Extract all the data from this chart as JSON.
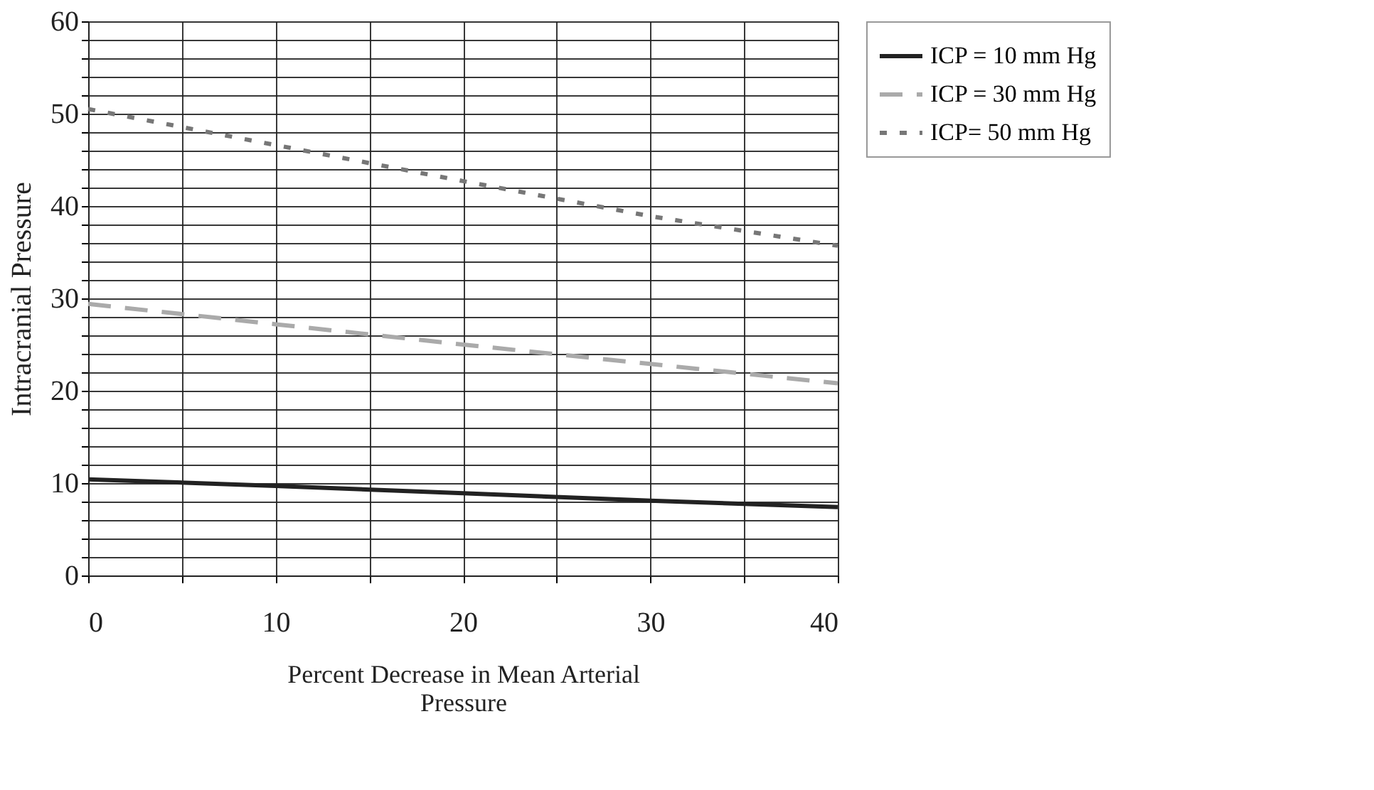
{
  "chart_data": {
    "type": "line",
    "xlabel": "Percent Decrease in Mean Arterial Pressure",
    "ylabel": "Intracranial Pressure",
    "x": [
      0,
      10,
      20,
      30,
      40
    ],
    "series": [
      {
        "name": "ICP = 10 mm Hg",
        "color": "#222222",
        "line_style": "solid",
        "values": [
          10.4,
          9.7,
          8.9,
          8.1,
          7.4
        ]
      },
      {
        "name": "ICP = 30 mm Hg",
        "color": "#aaaaaa",
        "line_style": "dashed",
        "values": [
          29.4,
          27.2,
          25.0,
          22.9,
          20.8
        ]
      },
      {
        "name": "ICP= 50 mm Hg",
        "color": "#777777",
        "line_style": "dotted",
        "values": [
          50.5,
          46.6,
          42.7,
          38.9,
          35.7
        ]
      }
    ],
    "xlim": [
      0,
      40
    ],
    "ylim": [
      0,
      60
    ],
    "xticks": [
      0,
      {
        "value": 5,
        "label": null
      },
      10,
      {
        "value": 15,
        "label": null
      },
      20,
      {
        "value": 25,
        "label": null
      },
      30,
      {
        "value": 35,
        "label": null
      },
      40
    ],
    "yticks": [
      0,
      {
        "value": 2,
        "label": null
      },
      {
        "value": 4,
        "label": null
      },
      {
        "value": 6,
        "label": null
      },
      {
        "value": 8,
        "label": null
      },
      10,
      {
        "value": 12,
        "label": null
      },
      {
        "value": 14,
        "label": null
      },
      {
        "value": 16,
        "label": null
      },
      {
        "value": 18,
        "label": null
      },
      20,
      {
        "value": 22,
        "label": null
      },
      {
        "value": 24,
        "label": null
      },
      {
        "value": 26,
        "label": null
      },
      {
        "value": 28,
        "label": null
      },
      30,
      {
        "value": 32,
        "label": null
      },
      {
        "value": 34,
        "label": null
      },
      {
        "value": 36,
        "label": null
      },
      {
        "value": 38,
        "label": null
      },
      40,
      {
        "value": 42,
        "label": null
      },
      {
        "value": 44,
        "label": null
      },
      {
        "value": 46,
        "label": null
      },
      {
        "value": 48,
        "label": null
      },
      50,
      {
        "value": 52,
        "label": null
      },
      {
        "value": 54,
        "label": null
      },
      {
        "value": 56,
        "label": null
      },
      {
        "value": 58,
        "label": null
      },
      60
    ],
    "grid": true,
    "legend": "right",
    "marker": "none"
  }
}
